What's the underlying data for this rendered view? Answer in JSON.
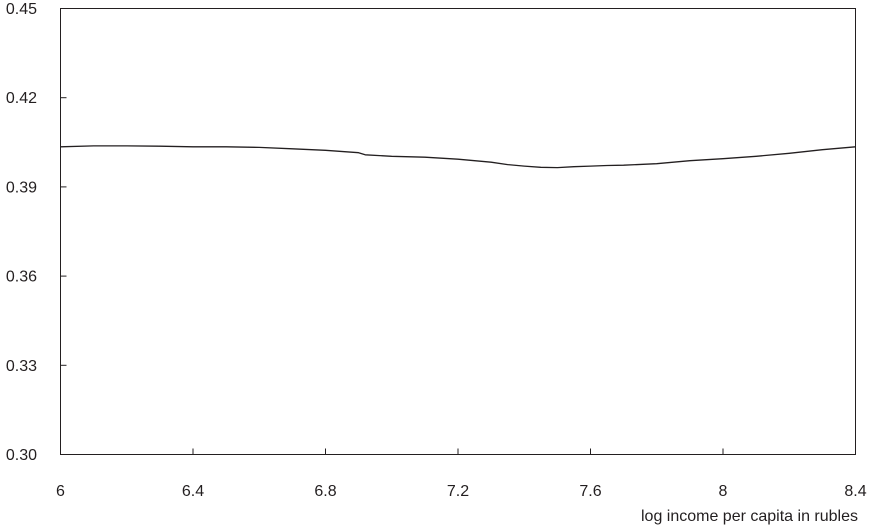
{
  "chart_data": {
    "type": "line",
    "title": "",
    "xlabel": "log income per capita in rubles",
    "ylabel": "",
    "xlim": [
      6,
      8.4
    ],
    "ylim": [
      0.3,
      0.45
    ],
    "x_ticks": [
      6,
      6.4,
      6.8,
      7.2,
      7.6,
      8,
      8.4
    ],
    "x_tick_labels": [
      "6",
      "6.4",
      "6.8",
      "7.2",
      "7.6",
      "8",
      "8.4"
    ],
    "y_ticks": [
      0.3,
      0.33,
      0.36,
      0.39,
      0.42,
      0.45
    ],
    "y_tick_labels": [
      "0.30",
      "0.33",
      "0.36",
      "0.39",
      "0.42",
      "0.45"
    ],
    "grid": false,
    "line_color": "#231f20",
    "series": [
      {
        "x": [
          6.0,
          6.1,
          6.2,
          6.3,
          6.4,
          6.5,
          6.6,
          6.7,
          6.8,
          6.9,
          6.92,
          7.0,
          7.1,
          7.2,
          7.3,
          7.35,
          7.4,
          7.45,
          7.5,
          7.55,
          7.6,
          7.65,
          7.7,
          7.8,
          7.9,
          8.0,
          8.1,
          8.2,
          8.3,
          8.4
        ],
        "y": [
          0.4035,
          0.4038,
          0.4038,
          0.4037,
          0.4035,
          0.4035,
          0.4033,
          0.4028,
          0.4023,
          0.4015,
          0.4008,
          0.4003,
          0.4,
          0.3993,
          0.3983,
          0.3975,
          0.397,
          0.3966,
          0.3965,
          0.3968,
          0.397,
          0.3972,
          0.3973,
          0.3978,
          0.3988,
          0.3995,
          0.4003,
          0.4013,
          0.4025,
          0.4035
        ]
      }
    ]
  }
}
